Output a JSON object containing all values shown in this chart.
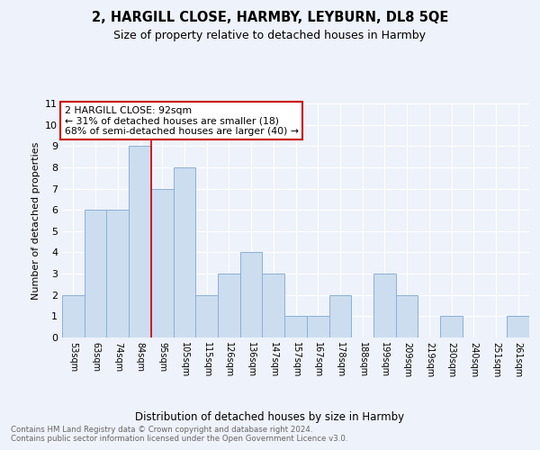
{
  "title1": "2, HARGILL CLOSE, HARMBY, LEYBURN, DL8 5QE",
  "title2": "Size of property relative to detached houses in Harmby",
  "xlabel": "Distribution of detached houses by size in Harmby",
  "ylabel": "Number of detached properties",
  "bar_labels": [
    "53sqm",
    "63sqm",
    "74sqm",
    "84sqm",
    "95sqm",
    "105sqm",
    "115sqm",
    "126sqm",
    "136sqm",
    "147sqm",
    "157sqm",
    "167sqm",
    "178sqm",
    "188sqm",
    "199sqm",
    "209sqm",
    "219sqm",
    "230sqm",
    "240sqm",
    "251sqm",
    "261sqm"
  ],
  "bar_values": [
    2,
    6,
    6,
    9,
    7,
    8,
    2,
    3,
    4,
    3,
    1,
    1,
    2,
    0,
    3,
    2,
    0,
    1,
    0,
    0,
    1
  ],
  "bar_color": "#ccddf0",
  "bar_edgecolor": "#8ab0d8",
  "vline_color": "#cc0000",
  "annotation_text": "2 HARGILL CLOSE: 92sqm\n← 31% of detached houses are smaller (18)\n68% of semi-detached houses are larger (40) →",
  "annotation_box_edgecolor": "#cc0000",
  "ylim": [
    0,
    11
  ],
  "yticks": [
    0,
    1,
    2,
    3,
    4,
    5,
    6,
    7,
    8,
    9,
    10,
    11
  ],
  "footnote": "Contains HM Land Registry data © Crown copyright and database right 2024.\nContains public sector information licensed under the Open Government Licence v3.0.",
  "background_color": "#eef2fa",
  "plot_bg_color": "#eef2fa",
  "grid_color": "#ffffff",
  "vline_bar_index": 4
}
